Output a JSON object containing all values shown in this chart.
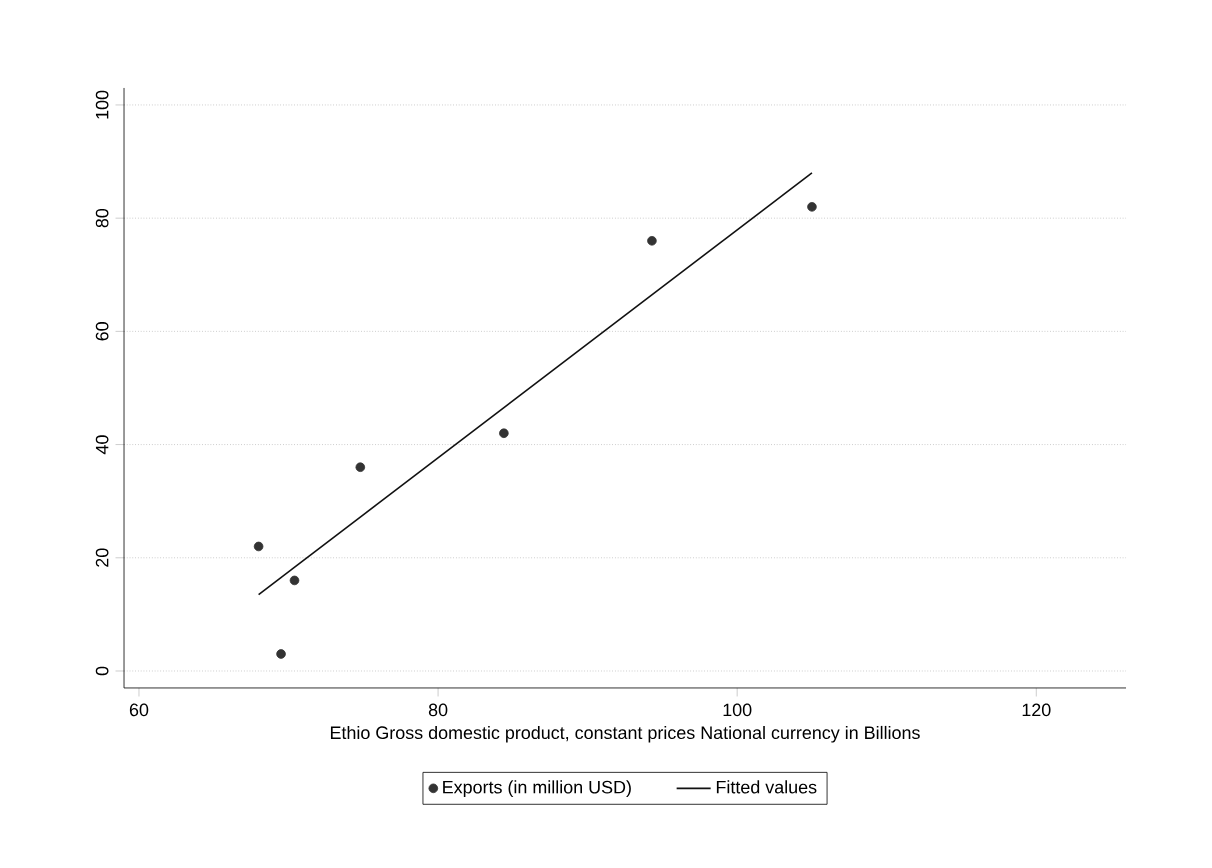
{
  "chart_data": {
    "type": "scatter",
    "xlabel": "Ethio Gross domestic product, constant prices National currency in Billions",
    "xlim": [
      59,
      126
    ],
    "xticks": [
      60,
      80,
      100,
      120
    ],
    "ylim": [
      -3,
      103
    ],
    "yticks": [
      0,
      20,
      40,
      60,
      80,
      100
    ],
    "grid": "y",
    "legend": "bottom",
    "series": [
      {
        "name": "Exports  (in million USD)",
        "marker": "circle",
        "color": "#333333",
        "x": [
          68,
          69.5,
          70.4,
          74.8,
          84.4,
          94.3,
          105
        ],
        "values": [
          22,
          3,
          16,
          36,
          42,
          76,
          82
        ]
      },
      {
        "name": "Fitted values",
        "type": "line",
        "color": "#111111",
        "marker": "none",
        "x": [
          68,
          105
        ],
        "values": [
          13.5,
          88
        ]
      }
    ]
  }
}
